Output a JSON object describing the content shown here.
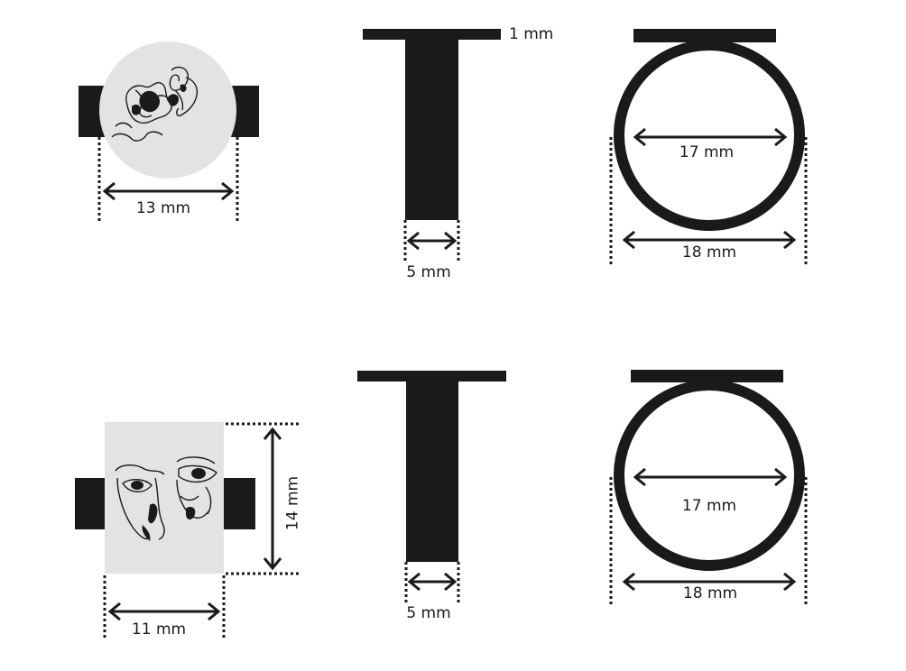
{
  "colors": {
    "ink": "#1a1a1a",
    "panel": "#e3e3e3"
  },
  "ring_round": {
    "face_image": "line-art-kissing-faces",
    "face_width": "13 mm",
    "plate_thickness": "1 mm",
    "band_width": "5 mm",
    "inner_diameter": "17 mm",
    "outer_diameter": "18 mm"
  },
  "ring_rect": {
    "face_image": "line-art-face-eyes",
    "face_width": "11 mm",
    "face_height": "14 mm",
    "band_width": "5 mm",
    "inner_diameter": "17 mm",
    "outer_diameter": "18 mm"
  }
}
